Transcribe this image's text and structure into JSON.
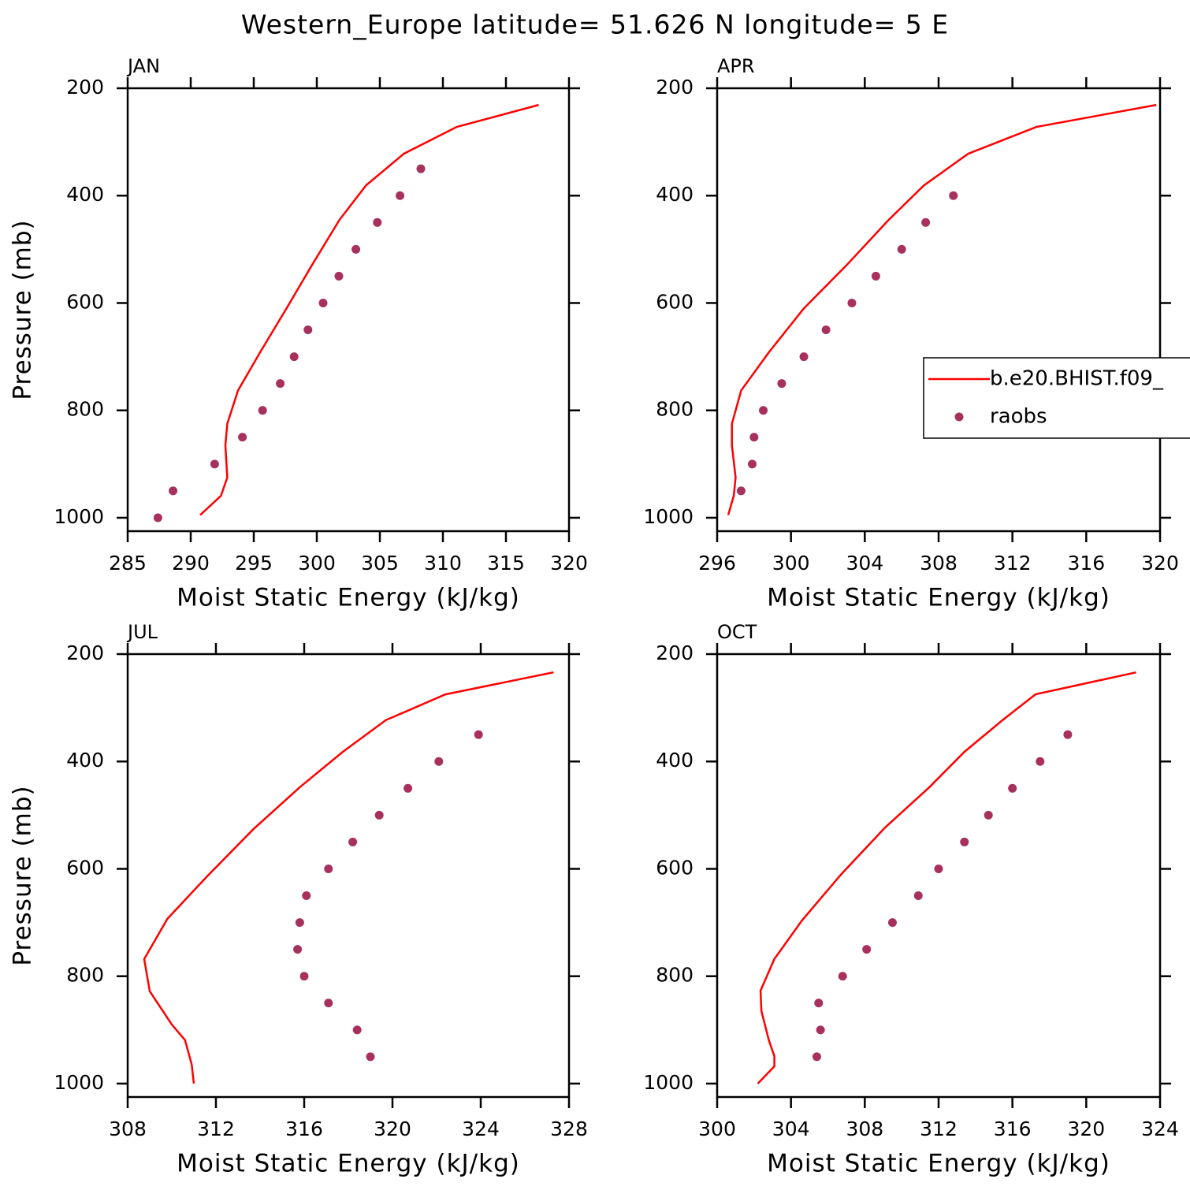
{
  "title": "Western_Europe  latitude= 51.626 N longitude= 5 E",
  "chart_data": [
    {
      "type": "line",
      "title": "JAN",
      "xlabel": "Moist Static Energy (kJ/kg)",
      "ylabel": "Pressure (mb)",
      "xlim": [
        285,
        320
      ],
      "xticks": [
        285,
        290,
        295,
        300,
        305,
        310,
        315,
        320
      ],
      "ylim": [
        1025,
        200
      ],
      "yticks": [
        200,
        400,
        600,
        800,
        1000
      ],
      "legend": false,
      "series": [
        {
          "mode": "line",
          "color": "#ff0000",
          "x": [
            317.6,
            311.1,
            306.9,
            303.9,
            301.8,
            299.6,
            297.6,
            295.5,
            293.75,
            292.9,
            292.75,
            292.9,
            292.4,
            290.75
          ],
          "y": [
            231,
            272,
            322,
            381,
            445,
            530,
            610,
            692,
            763,
            825,
            865,
            925,
            959,
            995
          ]
        },
        {
          "mode": "markers",
          "color": "#a8305c",
          "x": [
            308.25,
            306.6,
            304.8,
            303.1,
            301.75,
            300.5,
            299.3,
            298.2,
            297.1,
            295.7,
            294.1,
            291.9,
            288.6,
            287.4
          ],
          "y": [
            350,
            400,
            450,
            500,
            550,
            600,
            650,
            700,
            750,
            800,
            850,
            900,
            950,
            1000
          ]
        }
      ]
    },
    {
      "type": "line",
      "title": "APR",
      "xlabel": "Moist Static Energy (kJ/kg)",
      "xlim": [
        296,
        320
      ],
      "xticks": [
        296,
        300,
        304,
        308,
        312,
        316,
        320
      ],
      "ylim": [
        1025,
        200
      ],
      "yticks": [
        200,
        400,
        600,
        800,
        1000
      ],
      "legend": true,
      "series": [
        {
          "name": "b.e20.BHIST.f09_",
          "mode": "line",
          "color": "#ff0000",
          "x": [
            319.8,
            313.3,
            309.6,
            307.2,
            305.3,
            303.0,
            300.7,
            298.8,
            297.3,
            296.8,
            296.8,
            297.0,
            296.9,
            296.6
          ],
          "y": [
            231,
            272,
            322,
            381,
            445,
            530,
            610,
            692,
            763,
            825,
            865,
            925,
            959,
            995
          ]
        },
        {
          "name": "raobs",
          "mode": "markers",
          "color": "#a8305c",
          "x": [
            308.8,
            307.3,
            306.0,
            304.6,
            303.3,
            301.9,
            300.7,
            299.5,
            298.5,
            298.0,
            297.9,
            297.3
          ],
          "y": [
            400,
            450,
            500,
            550,
            600,
            650,
            700,
            750,
            800,
            850,
            900,
            950
          ]
        }
      ]
    },
    {
      "type": "line",
      "title": "JUL",
      "xlabel": "Moist Static Energy (kJ/kg)",
      "ylabel": "Pressure (mb)",
      "xlim": [
        308,
        328
      ],
      "xticks": [
        308,
        312,
        316,
        320,
        324,
        328
      ],
      "ylim": [
        1025,
        200
      ],
      "yticks": [
        200,
        400,
        600,
        800,
        1000
      ],
      "legend": false,
      "series": [
        {
          "mode": "line",
          "color": "#ff0000",
          "x": [
            327.3,
            322.4,
            319.7,
            317.75,
            315.8,
            313.7,
            311.6,
            309.8,
            308.75,
            309.0,
            310.0,
            310.6,
            310.9,
            311.0
          ],
          "y": [
            234,
            275,
            323,
            382,
            448,
            526,
            614,
            693,
            768,
            828,
            890,
            919,
            964,
            1000
          ]
        },
        {
          "mode": "markers",
          "color": "#a8305c",
          "x": [
            323.9,
            322.1,
            320.7,
            319.4,
            318.2,
            317.1,
            316.1,
            315.8,
            315.7,
            316.0,
            317.1,
            318.4,
            319.0
          ],
          "y": [
            350,
            400,
            450,
            500,
            550,
            600,
            650,
            700,
            750,
            800,
            850,
            900,
            950
          ]
        }
      ]
    },
    {
      "type": "line",
      "title": "OCT",
      "xlabel": "Moist Static Energy (kJ/kg)",
      "xlim": [
        300,
        324
      ],
      "xticks": [
        300,
        304,
        308,
        312,
        316,
        320,
        324
      ],
      "ylim": [
        1025,
        200
      ],
      "yticks": [
        200,
        400,
        600,
        800,
        1000
      ],
      "legend": false,
      "series": [
        {
          "mode": "line",
          "color": "#ff0000",
          "x": [
            322.7,
            317.25,
            315.5,
            313.4,
            311.5,
            309.1,
            306.7,
            304.6,
            303.1,
            302.35,
            302.4,
            302.8,
            303.1,
            303.1,
            302.2
          ],
          "y": [
            234,
            275,
            322,
            382,
            448,
            523,
            611,
            696,
            768,
            827,
            865,
            919,
            949,
            968,
            1000
          ]
        },
        {
          "mode": "markers",
          "color": "#a8305c",
          "x": [
            319.0,
            317.5,
            316.0,
            314.7,
            313.4,
            312.0,
            310.9,
            309.5,
            308.1,
            306.8,
            305.5,
            305.6,
            305.4
          ],
          "y": [
            350,
            400,
            450,
            500,
            550,
            600,
            650,
            700,
            750,
            800,
            850,
            900,
            950
          ]
        }
      ]
    }
  ]
}
